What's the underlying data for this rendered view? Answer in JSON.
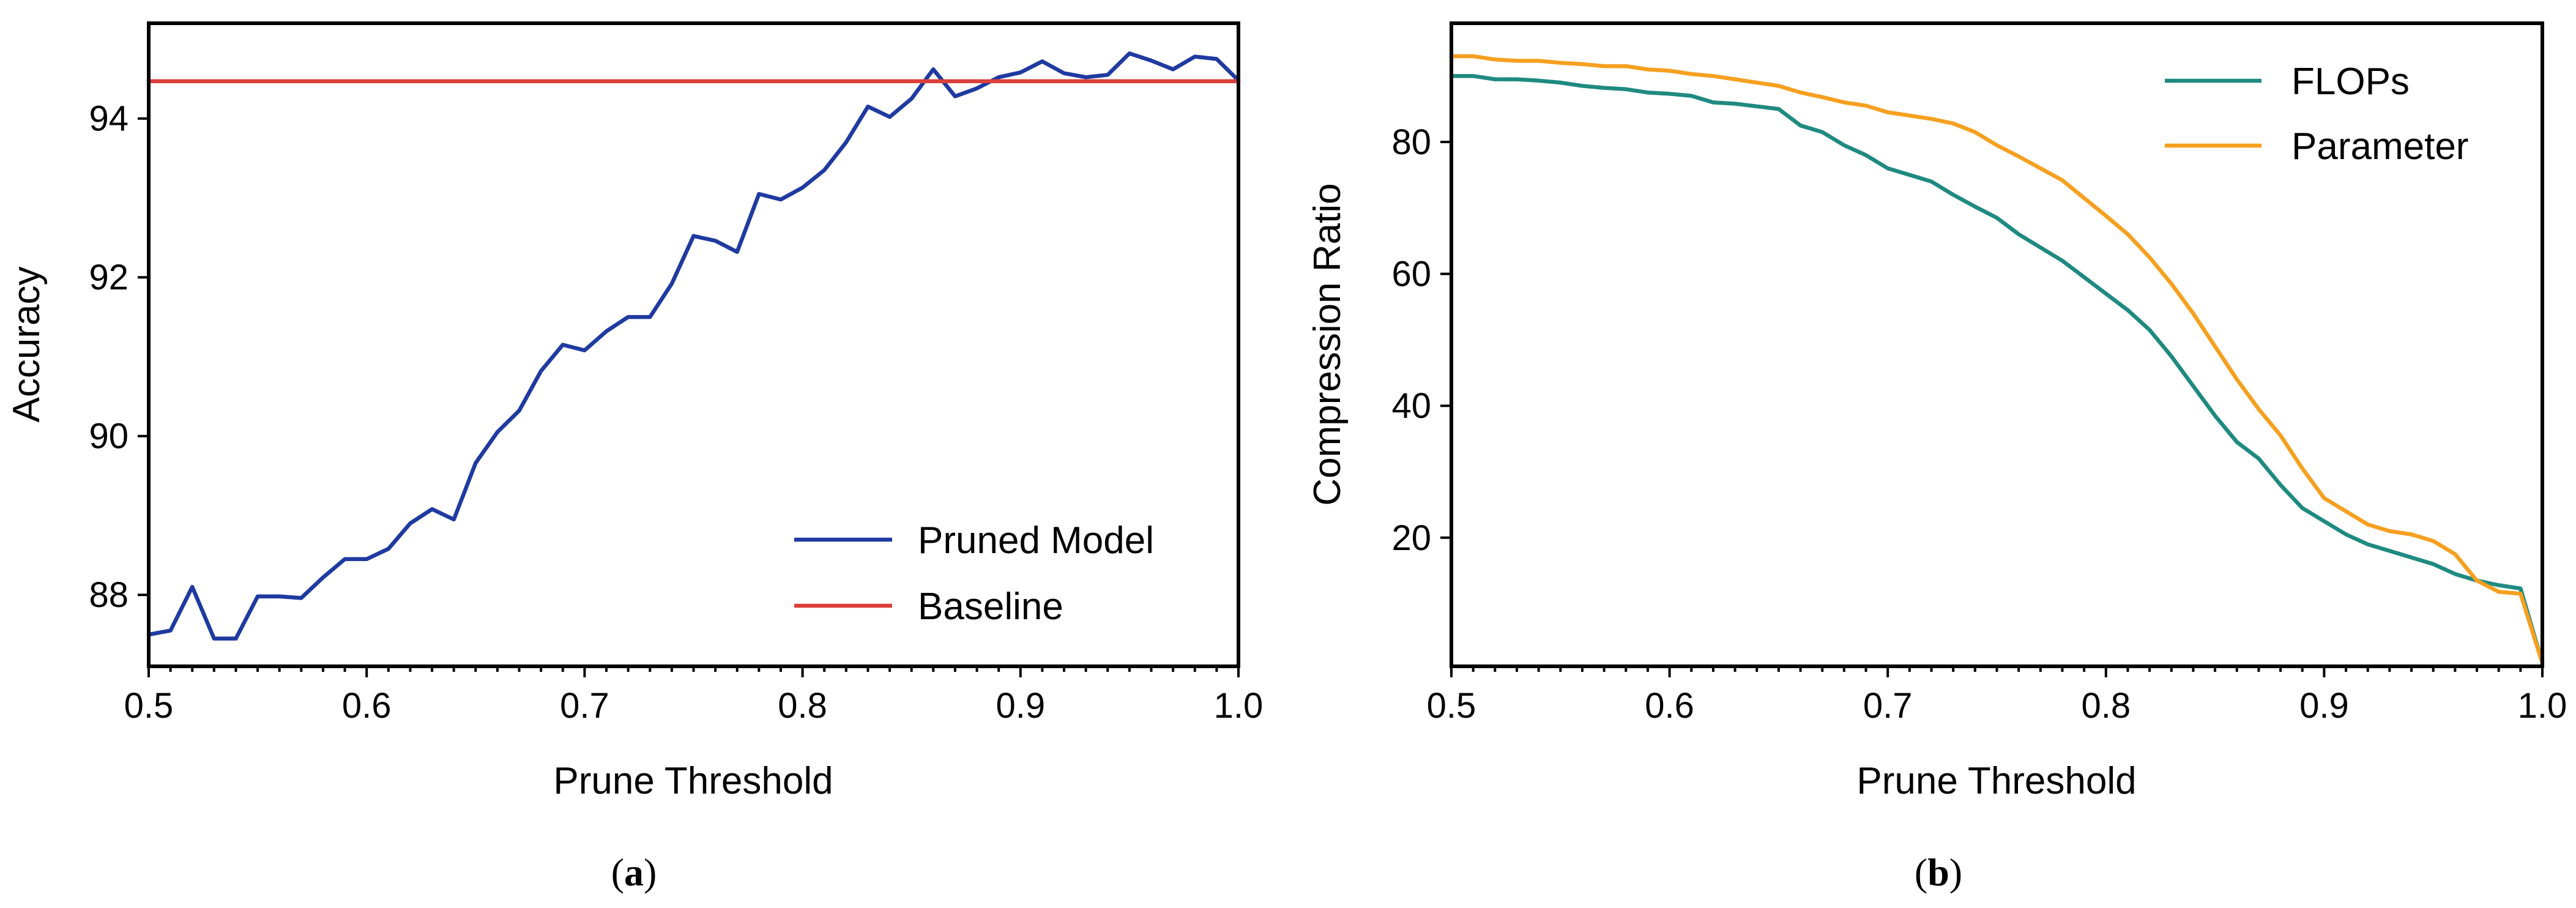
{
  "chart_data": [
    {
      "type": "line",
      "panel": "a",
      "caption": "(a)",
      "caption_letter": "a",
      "xlabel": "Prune Threshold",
      "ylabel": "Accuracy",
      "xlim": [
        0.5,
        1.0
      ],
      "ylim": [
        87.1,
        95.2
      ],
      "xticks": [
        0.5,
        0.6,
        0.7,
        0.8,
        0.9,
        1.0
      ],
      "xtick_labels": [
        "0.5",
        "0.6",
        "0.7",
        "0.8",
        "0.9",
        "1.0"
      ],
      "yticks": [
        88,
        90,
        92,
        94
      ],
      "ytick_labels": [
        "88",
        "90",
        "92",
        "94"
      ],
      "legend_position": "lower-right",
      "series": [
        {
          "name": "Pruned Model",
          "color": "#1f3aa0",
          "x": [
            0.5,
            0.51,
            0.52,
            0.53,
            0.54,
            0.55,
            0.56,
            0.57,
            0.58,
            0.59,
            0.6,
            0.61,
            0.62,
            0.63,
            0.64,
            0.65,
            0.66,
            0.67,
            0.68,
            0.69,
            0.7,
            0.71,
            0.72,
            0.73,
            0.74,
            0.75,
            0.76,
            0.77,
            0.78,
            0.79,
            0.8,
            0.81,
            0.82,
            0.83,
            0.84,
            0.85,
            0.86,
            0.87,
            0.88,
            0.89,
            0.9,
            0.91,
            0.92,
            0.93,
            0.94,
            0.95,
            0.96,
            0.97,
            0.98,
            0.99,
            1.0
          ],
          "y": [
            87.5,
            87.55,
            88.1,
            87.45,
            87.45,
            87.98,
            87.98,
            87.96,
            88.22,
            88.45,
            88.45,
            88.58,
            88.9,
            89.08,
            88.95,
            89.66,
            90.05,
            90.32,
            90.82,
            91.15,
            91.08,
            91.32,
            91.5,
            91.5,
            91.92,
            92.52,
            92.46,
            92.32,
            93.05,
            92.98,
            93.13,
            93.35,
            93.7,
            94.15,
            94.02,
            94.25,
            94.62,
            94.28,
            94.38,
            94.52,
            94.58,
            94.72,
            94.57,
            94.52,
            94.55,
            94.82,
            94.73,
            94.62,
            94.78,
            94.75,
            94.48
          ]
        },
        {
          "name": "Baseline",
          "color": "#d9403a",
          "x": [
            0.5,
            1.0
          ],
          "y": [
            94.47,
            94.47
          ]
        }
      ]
    },
    {
      "type": "line",
      "panel": "b",
      "caption": "(b)",
      "caption_letter": "b",
      "xlabel": "Prune Threshold",
      "ylabel": "Compression Ratio",
      "xlim": [
        0.5,
        1.0
      ],
      "ylim": [
        0.5,
        98
      ],
      "xticks": [
        0.5,
        0.6,
        0.7,
        0.8,
        0.9,
        1.0
      ],
      "xtick_labels": [
        "0.5",
        "0.6",
        "0.7",
        "0.8",
        "0.9",
        "1.0"
      ],
      "yticks": [
        20,
        40,
        60,
        80
      ],
      "ytick_labels": [
        "20",
        "40",
        "60",
        "80"
      ],
      "legend_position": "top-right",
      "series": [
        {
          "name": "FLOPs",
          "color": "#1f8a80",
          "x": [
            0.5,
            0.51,
            0.52,
            0.53,
            0.54,
            0.55,
            0.56,
            0.57,
            0.58,
            0.59,
            0.6,
            0.61,
            0.62,
            0.63,
            0.64,
            0.65,
            0.66,
            0.67,
            0.68,
            0.69,
            0.7,
            0.71,
            0.72,
            0.73,
            0.74,
            0.75,
            0.76,
            0.77,
            0.78,
            0.79,
            0.8,
            0.81,
            0.82,
            0.83,
            0.84,
            0.85,
            0.86,
            0.87,
            0.88,
            0.89,
            0.9,
            0.91,
            0.92,
            0.93,
            0.94,
            0.95,
            0.96,
            0.97,
            0.98,
            0.99,
            1.0
          ],
          "y": [
            90.0,
            90.0,
            89.5,
            89.5,
            89.3,
            89.0,
            88.5,
            88.2,
            88.0,
            87.5,
            87.3,
            87.0,
            86.0,
            85.8,
            85.4,
            85.0,
            82.5,
            81.5,
            79.5,
            78.0,
            76.0,
            75.0,
            74.0,
            72.0,
            70.2,
            68.5,
            66.0,
            64.0,
            62.0,
            59.5,
            57.0,
            54.5,
            51.5,
            47.5,
            43.0,
            38.5,
            34.5,
            32.0,
            28.0,
            24.5,
            22.5,
            20.5,
            19.0,
            18.0,
            17.0,
            16.0,
            14.5,
            13.5,
            12.8,
            12.3,
            1.0
          ]
        },
        {
          "name": "Parameter",
          "color": "#f5a020",
          "x": [
            0.5,
            0.51,
            0.52,
            0.53,
            0.54,
            0.55,
            0.56,
            0.57,
            0.58,
            0.59,
            0.6,
            0.61,
            0.62,
            0.63,
            0.64,
            0.65,
            0.66,
            0.67,
            0.68,
            0.69,
            0.7,
            0.71,
            0.72,
            0.73,
            0.74,
            0.75,
            0.76,
            0.77,
            0.78,
            0.79,
            0.8,
            0.81,
            0.82,
            0.83,
            0.84,
            0.85,
            0.86,
            0.87,
            0.88,
            0.89,
            0.9,
            0.91,
            0.92,
            0.93,
            0.94,
            0.95,
            0.96,
            0.97,
            0.98,
            0.99,
            1.0
          ],
          "y": [
            93.0,
            93.0,
            92.5,
            92.3,
            92.3,
            92.0,
            91.8,
            91.5,
            91.5,
            91.0,
            90.8,
            90.3,
            90.0,
            89.5,
            89.0,
            88.5,
            87.5,
            86.8,
            86.0,
            85.5,
            84.5,
            84.0,
            83.5,
            82.8,
            81.5,
            79.5,
            77.8,
            76.0,
            74.2,
            71.5,
            68.8,
            66.0,
            62.5,
            58.5,
            54.0,
            49.0,
            44.0,
            39.5,
            35.5,
            30.5,
            26.0,
            24.0,
            22.0,
            21.0,
            20.5,
            19.5,
            17.5,
            13.5,
            11.8,
            11.5,
            1.0
          ]
        }
      ]
    }
  ]
}
